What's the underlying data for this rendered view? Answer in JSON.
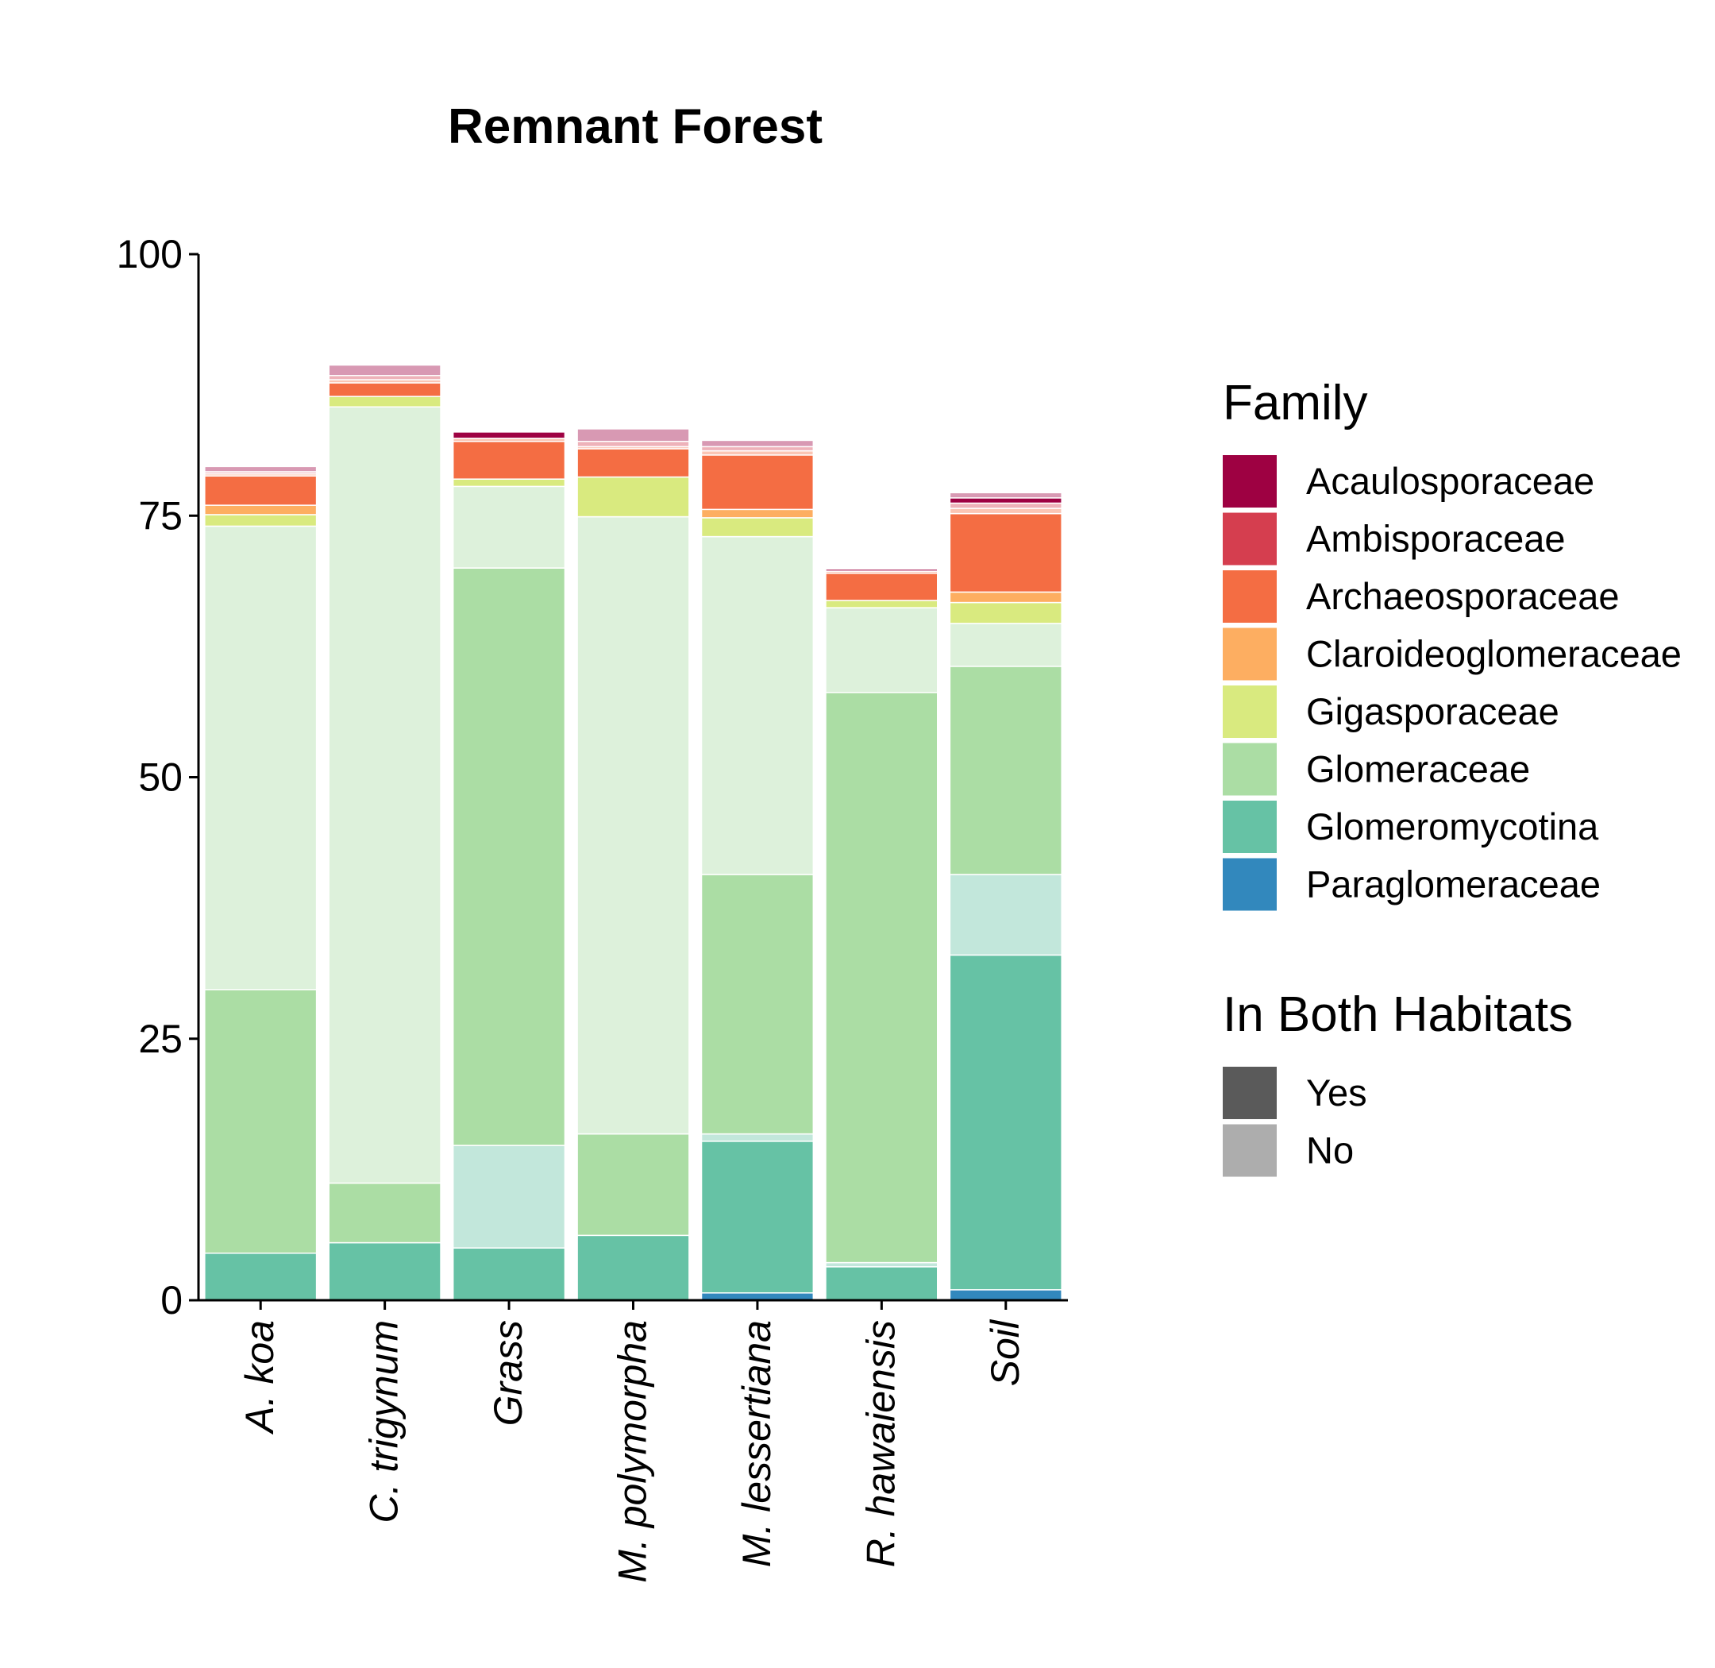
{
  "chart_data": {
    "type": "bar",
    "stacked": true,
    "title": "Remnant Forest",
    "xlabel": "",
    "ylabel": "",
    "ylim": [
      0,
      100
    ],
    "yticks": [
      "0",
      "25",
      "50",
      "75",
      "100"
    ],
    "categories": [
      "A. koa",
      "C. trigynum",
      "Grass",
      "M. polymorpha",
      "M. lessertiana",
      "R. hawaiensis",
      "Soil"
    ],
    "family_colors": {
      "Acaulosporaceae": "#9E0142",
      "Ambisporaceae": "#D53E4F",
      "Archaeosporaceae": "#F46D43",
      "Claroideoglomeraceae": "#FDAE61",
      "Gigasporaceae": "#D9EA7F",
      "Glomeraceae": "#ABDDA4",
      "Glomeromycotina": "#66C2A5",
      "Paraglomeraceae": "#3288BD"
    },
    "series": [
      {
        "family": "Paraglomeraceae",
        "in_both": "Yes",
        "values": [
          0,
          0,
          0,
          0,
          0.7,
          0,
          1.0
        ]
      },
      {
        "family": "Glomeromycotina",
        "in_both": "Yes",
        "values": [
          4.5,
          5.5,
          5.0,
          6.2,
          14.5,
          3.2,
          32.0
        ]
      },
      {
        "family": "Glomeromycotina",
        "in_both": "No",
        "values": [
          0,
          0,
          9.8,
          0,
          0.7,
          0.4,
          7.7
        ]
      },
      {
        "family": "Glomeraceae",
        "in_both": "Yes",
        "values": [
          25.2,
          5.7,
          55.2,
          9.7,
          24.8,
          54.5,
          19.9
        ]
      },
      {
        "family": "Glomeraceae",
        "in_both": "No",
        "values": [
          44.3,
          74.2,
          7.8,
          59.0,
          32.3,
          8.1,
          4.1
        ]
      },
      {
        "family": "Gigasporaceae",
        "in_both": "Yes",
        "values": [
          1.1,
          1.0,
          0.7,
          3.8,
          1.8,
          0.7,
          2.0
        ]
      },
      {
        "family": "Claroideoglomeraceae",
        "in_both": "Yes",
        "values": [
          0.9,
          0,
          0,
          0,
          0.8,
          0,
          1.0
        ]
      },
      {
        "family": "Archaeosporaceae",
        "in_both": "Yes",
        "values": [
          2.8,
          1.3,
          3.6,
          2.7,
          5.2,
          2.6,
          7.5
        ]
      },
      {
        "family": "Archaeosporaceae",
        "in_both": "No",
        "values": [
          0.2,
          0.3,
          0.3,
          0.2,
          0.4,
          0.2,
          0.5
        ]
      },
      {
        "family": "Ambisporaceae",
        "in_both": "No",
        "values": [
          0.2,
          0.4,
          0,
          0.5,
          0.4,
          0,
          0.5
        ]
      },
      {
        "family": "Acaulosporaceae",
        "in_both": "Yes",
        "values": [
          0,
          0,
          0.6,
          0,
          0,
          0.2,
          0.5
        ]
      },
      {
        "family": "Acaulosporaceae",
        "in_both": "No",
        "values": [
          0.5,
          1.0,
          0,
          1.2,
          0.6,
          0.1,
          0.5
        ]
      }
    ],
    "legend": {
      "placement": "right",
      "family": {
        "title": "Family",
        "items": [
          "Acaulosporaceae",
          "Ambisporaceae",
          "Archaeosporaceae",
          "Claroideoglomeraceae",
          "Gigasporaceae",
          "Glomeraceae",
          "Glomeromycotina",
          "Paraglomeraceae"
        ]
      },
      "in_both": {
        "title": "In Both Habitats",
        "items": [
          {
            "label": "Yes",
            "color": "#5A5A5A"
          },
          {
            "label": "No",
            "color": "#ADADAD"
          }
        ]
      }
    }
  }
}
